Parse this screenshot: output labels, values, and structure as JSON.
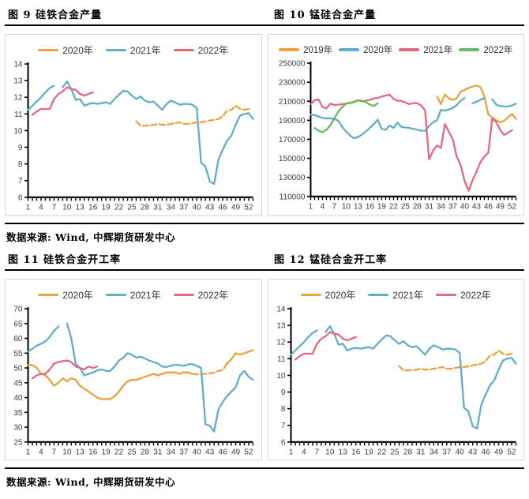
{
  "sections": [
    {
      "left_title": "图 9 硅铁合金产量",
      "right_title": "图 10 锰硅合金产量",
      "note": "数据来源: Wind, 中辉期货研发中心"
    },
    {
      "left_title": "图 11 硅铁合金开工率",
      "right_title": "图 12 锰硅合金开工率",
      "note": "数据来源: Wind, 中辉期货研发中心"
    }
  ],
  "colors": {
    "orange": "#E8A33D",
    "blue": "#62AEC7",
    "pink": "#E2697E",
    "green": "#6BB763",
    "axis": "#000000"
  },
  "chart_data": [
    {
      "type": "line",
      "title": "图 9 硅铁合金产量",
      "x_axis_weeks": true,
      "x_range": [
        1,
        53
      ],
      "x_label_ticks": [
        1,
        4,
        7,
        10,
        13,
        16,
        19,
        22,
        25,
        28,
        31,
        34,
        37,
        40,
        43,
        46,
        49,
        52
      ],
      "y_range": [
        6,
        14
      ],
      "y_ticks": [
        6,
        7,
        8,
        9,
        10,
        11,
        12,
        13,
        14
      ],
      "grid": false,
      "legend_position": "top",
      "legend": [
        {
          "label": "2020年",
          "color": "#E8A33D"
        },
        {
          "label": "2021年",
          "color": "#62AEC7"
        },
        {
          "label": "2022年",
          "color": "#E2697E"
        }
      ],
      "lines": [
        {
          "name": "2020年",
          "color": "#E8A33D",
          "dashed": true,
          "start_week": 26,
          "values": [
            10.55,
            10.3,
            10.3,
            10.3,
            10.35,
            10.4,
            10.35,
            10.35,
            10.4,
            10.45,
            10.5,
            10.4,
            10.4,
            10.45,
            10.5,
            10.5,
            10.55,
            10.6,
            10.65,
            10.7,
            10.85,
            11.2,
            11.25,
            11.5,
            11.3,
            11.25,
            11.3
          ]
        },
        {
          "name": "2021年",
          "color": "#62AEC7",
          "dashed": false,
          "start_week": 1,
          "values": [
            11.25,
            11.5,
            11.75,
            12.0,
            12.3,
            12.55,
            12.7,
            null,
            12.6,
            12.95,
            12.5,
            11.85,
            11.9,
            11.5,
            11.6,
            11.65,
            11.6,
            11.65,
            11.7,
            11.6,
            11.9,
            12.15,
            12.4,
            12.35,
            12.1,
            11.9,
            12.05,
            11.8,
            11.7,
            11.75,
            11.5,
            11.25,
            11.6,
            11.8,
            11.7,
            11.55,
            11.6,
            11.6,
            11.55,
            11.35,
            8.05,
            7.85,
            6.95,
            6.8,
            8.25,
            8.85,
            9.4,
            9.7,
            10.35,
            10.9,
            11.0,
            11.05,
            10.7
          ]
        },
        {
          "name": "2022年",
          "color": "#E2697E",
          "dashed": false,
          "start_week": 2,
          "values": [
            10.95,
            11.15,
            11.3,
            11.3,
            11.3,
            11.9,
            12.2,
            12.35,
            12.6,
            12.5,
            12.45,
            12.2,
            12.1,
            12.2,
            12.3
          ]
        }
      ]
    },
    {
      "type": "line",
      "title": "图 10 锰硅合金产量",
      "x_axis_weeks": true,
      "x_range": [
        1,
        53
      ],
      "x_label_ticks": [
        1,
        4,
        7,
        10,
        13,
        16,
        19,
        22,
        25,
        28,
        31,
        34,
        37,
        40,
        43,
        46,
        49,
        52
      ],
      "y_range": [
        110000,
        250000
      ],
      "y_ticks": [
        110000,
        130000,
        150000,
        170000,
        190000,
        210000,
        230000,
        250000
      ],
      "grid": false,
      "legend_position": "top",
      "legend": [
        {
          "label": "2019年",
          "color": "#E8A33D"
        },
        {
          "label": "2020年",
          "color": "#62AEC7"
        },
        {
          "label": "2021年",
          "color": "#E2697E"
        },
        {
          "label": "2022年",
          "color": "#6BB763"
        }
      ],
      "lines": [
        {
          "name": "2019年",
          "color": "#E8A33D",
          "dashed": false,
          "start_week": 33,
          "values": [
            215000,
            207000,
            217000,
            213000,
            211500,
            213000,
            220000,
            222000,
            224000,
            225500,
            226500,
            225000,
            215000,
            196000,
            193000,
            190000,
            188000,
            189500,
            193000,
            196500,
            191500
          ]
        },
        {
          "name": "2020年",
          "color": "#62AEC7",
          "dashed": false,
          "start_week": 1,
          "values": [
            196000,
            195500,
            194000,
            192500,
            192000,
            192000,
            191500,
            189500,
            183000,
            178000,
            174000,
            171000,
            172500,
            175000,
            178500,
            182000,
            186000,
            190500,
            181000,
            180000,
            184500,
            182000,
            187500,
            183000,
            182500,
            182000,
            181000,
            180000,
            179000,
            179000,
            184000,
            188000,
            190000,
            201000,
            200000,
            201500,
            203000,
            206000,
            210500,
            213500,
            null,
            208000,
            209500,
            211500,
            213500,
            null,
            212000,
            206500,
            205000,
            204500,
            204500,
            205500,
            207500
          ]
        },
        {
          "name": "2021年",
          "color": "#E2697E",
          "dashed": false,
          "start_week": 1,
          "values": [
            207000,
            211000,
            212000,
            204000,
            202500,
            207500,
            206000,
            206500,
            207000,
            207500,
            208000,
            209500,
            211000,
            210000,
            210500,
            211500,
            213000,
            213500,
            215000,
            216000,
            217000,
            212500,
            210500,
            210500,
            208500,
            207000,
            208000,
            208000,
            205500,
            200500,
            149000,
            158000,
            163500,
            161000,
            186000,
            178000,
            170000,
            152000,
            143000,
            126000,
            116000,
            127000,
            136000,
            146000,
            152000,
            156000,
            192000,
            188000,
            180000,
            174500,
            177000,
            179500
          ]
        },
        {
          "name": "2022年",
          "color": "#6BB763",
          "dashed": false,
          "start_week": 2,
          "values": [
            182000,
            179000,
            177500,
            180000,
            185000,
            192000,
            199000,
            204000,
            207500,
            208500,
            209000,
            211000,
            210500,
            209000,
            206500,
            205000,
            208000
          ]
        }
      ]
    },
    {
      "type": "line",
      "title": "图 11 硅铁合金开工率",
      "x_axis_weeks": true,
      "x_range": [
        1,
        53
      ],
      "x_label_ticks": [
        1,
        4,
        7,
        10,
        13,
        16,
        19,
        22,
        25,
        28,
        31,
        34,
        37,
        40,
        43,
        46,
        49,
        52
      ],
      "y_range": [
        25,
        70
      ],
      "y_ticks": [
        25,
        30,
        35,
        40,
        45,
        50,
        55,
        60,
        65,
        70
      ],
      "grid": false,
      "legend_position": "top",
      "legend": [
        {
          "label": "2020年",
          "color": "#E8A33D"
        },
        {
          "label": "2021年",
          "color": "#62AEC7"
        },
        {
          "label": "2022年",
          "color": "#E2697E"
        }
      ],
      "lines": [
        {
          "name": "2020年",
          "color": "#E8A33D",
          "dashed": false,
          "start_week": 1,
          "values": [
            51,
            51,
            50,
            48,
            47.5,
            46,
            44,
            45,
            46.5,
            45.5,
            46.5,
            46,
            44,
            43,
            42,
            41,
            40,
            39.5,
            39.5,
            39.5,
            40.5,
            42,
            44,
            45.5,
            46,
            46,
            46.5,
            47,
            47.5,
            48,
            47.5,
            48,
            48.5,
            48.5,
            48.5,
            48,
            48.5,
            48.5,
            48
          ]
        },
        {
          "name": "2020年",
          "color": "#E8A33D",
          "dashed": true,
          "start_week": 39,
          "values": [
            48,
            47.8,
            48,
            48,
            48.2,
            48.5,
            49,
            49.3,
            51.5
          ]
        },
        {
          "name": "2020年",
          "color": "#E8A33D",
          "dashed": false,
          "start_week": 47,
          "values": [
            51.5,
            53,
            55,
            54.5,
            55,
            55.5,
            56
          ]
        },
        {
          "name": "2021年",
          "color": "#62AEC7",
          "dashed": false,
          "start_week": 1,
          "values": [
            55.5,
            56.5,
            57.5,
            58.2,
            59,
            60.5,
            62.5,
            64,
            null,
            65,
            60,
            51.5,
            50,
            47.5,
            48,
            48.5,
            49.2,
            49.5,
            49,
            49,
            50.5,
            52.5,
            53.5,
            55,
            54.5,
            53.5,
            53.8,
            53.2,
            52.5,
            52,
            51.5,
            50.5,
            50.3,
            50.8,
            51,
            51,
            50.7,
            51.2,
            51.3,
            50.7,
            50,
            31,
            30.5,
            28.5,
            36,
            38.5,
            40.5,
            42,
            43.5,
            47.5,
            49,
            47,
            46
          ]
        },
        {
          "name": "2022年",
          "color": "#E2697E",
          "dashed": false,
          "start_week": 2,
          "values": [
            46.5,
            47.5,
            48,
            48,
            49.5,
            51.5,
            52,
            52.3,
            52.5,
            52,
            50.5,
            50,
            49.5,
            50.5,
            50,
            50.5
          ]
        }
      ]
    },
    {
      "type": "line",
      "title": "图 12 锰硅合金开工率",
      "x_axis_weeks": true,
      "x_range": [
        1,
        53
      ],
      "x_label_ticks": [
        1,
        4,
        7,
        10,
        13,
        16,
        19,
        22,
        25,
        28,
        31,
        34,
        37,
        40,
        43,
        46,
        49,
        52
      ],
      "y_range": [
        6,
        14
      ],
      "y_ticks": [
        6,
        7,
        8,
        9,
        10,
        11,
        12,
        13,
        14
      ],
      "grid": false,
      "legend_position": "top",
      "legend": [
        {
          "label": "2020年",
          "color": "#E8A33D"
        },
        {
          "label": "2021年",
          "color": "#62AEC7"
        },
        {
          "label": "2022年",
          "color": "#E2697E"
        }
      ],
      "lines": [
        {
          "name": "2020年",
          "color": "#E8A33D",
          "dashed": true,
          "start_week": 26,
          "values": [
            10.55,
            10.3,
            10.3,
            10.3,
            10.35,
            10.4,
            10.35,
            10.35,
            10.4,
            10.45,
            10.5,
            10.4,
            10.4,
            10.45,
            10.5,
            10.5,
            10.55,
            10.6,
            10.65,
            10.7,
            10.85,
            11.2,
            11.25,
            11.5,
            11.3,
            11.25,
            11.3
          ]
        },
        {
          "name": "2021年",
          "color": "#62AEC7",
          "dashed": false,
          "start_week": 1,
          "values": [
            11.25,
            11.5,
            11.75,
            12.0,
            12.3,
            12.55,
            12.7,
            null,
            12.6,
            12.95,
            12.5,
            11.85,
            11.9,
            11.5,
            11.6,
            11.65,
            11.6,
            11.65,
            11.7,
            11.6,
            11.9,
            12.15,
            12.4,
            12.35,
            12.1,
            11.9,
            12.05,
            11.8,
            11.7,
            11.75,
            11.5,
            11.25,
            11.6,
            11.8,
            11.7,
            11.55,
            11.6,
            11.6,
            11.55,
            11.35,
            8.05,
            7.85,
            6.95,
            6.8,
            8.25,
            8.85,
            9.4,
            9.7,
            10.35,
            10.9,
            11.0,
            11.05,
            10.7
          ]
        },
        {
          "name": "2022年",
          "color": "#E2697E",
          "dashed": false,
          "start_week": 2,
          "values": [
            10.95,
            11.15,
            11.3,
            11.3,
            11.3,
            11.9,
            12.2,
            12.35,
            12.6,
            12.5,
            12.45,
            12.2,
            12.1,
            12.2,
            12.3
          ]
        }
      ]
    }
  ]
}
